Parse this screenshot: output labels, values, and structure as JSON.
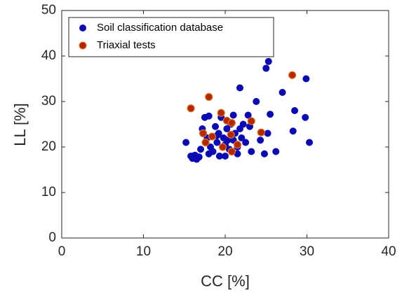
{
  "chart_data": {
    "type": "scatter",
    "xlabel": "CC [%]",
    "ylabel": "LL [%]",
    "xlim": [
      0,
      40
    ],
    "ylim": [
      0,
      50
    ],
    "xticks": [
      0,
      10,
      20,
      30,
      40
    ],
    "yticks": [
      0,
      10,
      20,
      30,
      40,
      50
    ],
    "legend": "upper-left",
    "series": [
      {
        "name": "Soil classification database",
        "color": "#0a0ab4",
        "x": [
          15.2,
          15.8,
          16.0,
          16.3,
          16.8,
          17.0,
          17.2,
          17.5,
          17.8,
          18.0,
          18.2,
          18.5,
          18.8,
          19.0,
          19.2,
          19.3,
          19.5,
          19.8,
          20.0,
          20.2,
          20.5,
          20.7,
          21.0,
          21.0,
          21.2,
          21.5,
          21.8,
          22.0,
          22.2,
          22.5,
          22.8,
          23.0,
          21.8,
          23.8,
          24.3,
          24.8,
          25.0,
          25.3,
          25.2,
          25.5,
          26.2,
          27.0,
          28.3,
          28.5,
          29.8,
          29.9,
          30.3,
          16.5,
          18.0,
          20.0,
          21.5,
          23.2,
          19.0,
          20.3
        ],
        "values": [
          21,
          18,
          17.5,
          18.2,
          17.8,
          19.5,
          24,
          26.5,
          22,
          26.8,
          20,
          19,
          24.5,
          21,
          23,
          18,
          26.5,
          22,
          20.5,
          24,
          19.5,
          25,
          21.5,
          27,
          23,
          20,
          24,
          22,
          25,
          21,
          27,
          24.5,
          33,
          30,
          21.5,
          18.5,
          37.3,
          38.8,
          23,
          27.2,
          19,
          32,
          23.5,
          28,
          26.5,
          35,
          21,
          17.3,
          18.5,
          18,
          18.5,
          19,
          22.5,
          21.5
        ]
      },
      {
        "name": "Triaxial tests",
        "color": "#b42800",
        "x": [
          15.8,
          17.6,
          17.3,
          18.0,
          18.4,
          19.5,
          19.7,
          20.2,
          20.8,
          20.7,
          20.8,
          21.5,
          23.2,
          24.4,
          28.2
        ],
        "values": [
          28.5,
          21,
          23,
          31,
          22.3,
          27.5,
          20,
          25.8,
          25.3,
          22.7,
          19,
          20.5,
          25.7,
          23.2,
          35.8
        ]
      }
    ]
  }
}
